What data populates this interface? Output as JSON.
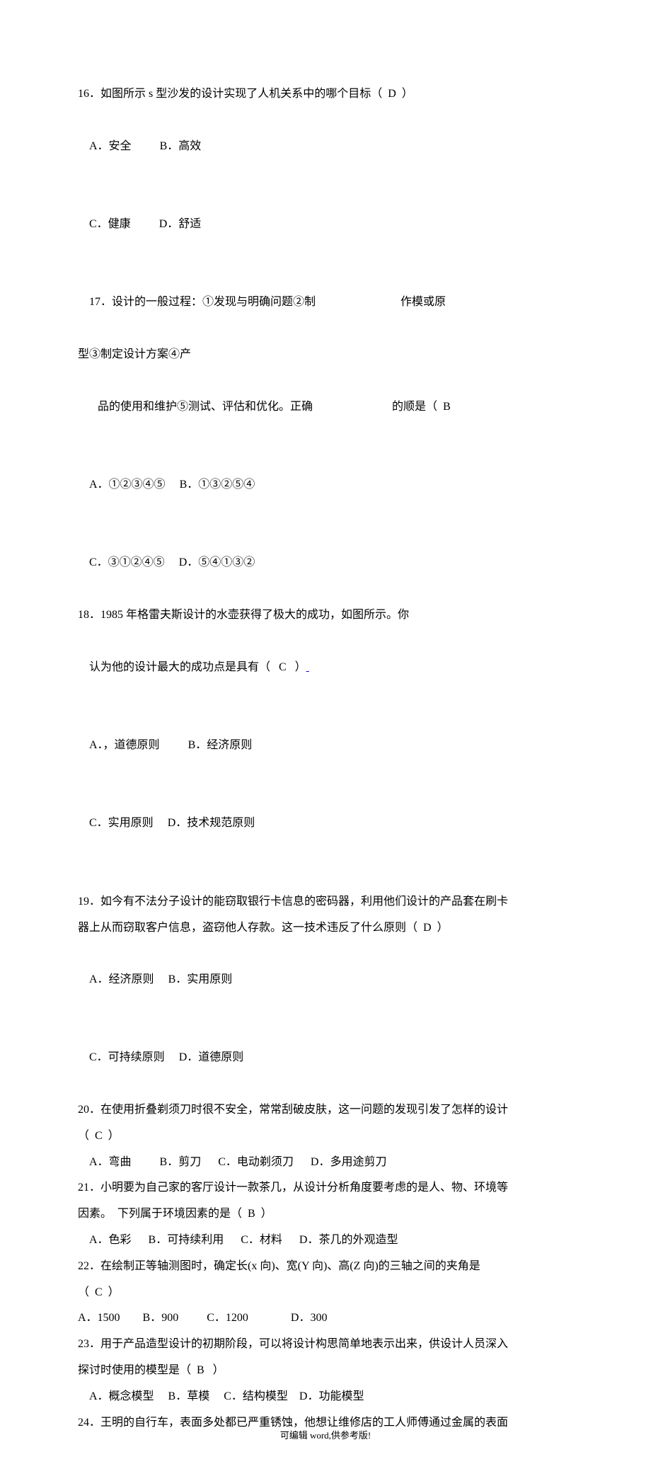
{
  "q16": {
    "text": "16．如图所示 s 型沙发的设计实现了人机关系中的哪个目标（  D  ）",
    "optA": "A．安全",
    "optB": "B．高效",
    "optC": "C．健康",
    "optD": "D．舒适"
  },
  "q17": {
    "text1_left": "17．设计的一般过程：①发现与明确问题②制",
    "text1_right": "作模或原",
    "text2": "型③制定设计方案④产",
    "text3_left": "   品的使用和维护⑤测试、评估和优化。正确",
    "text3_right": "的顺是（  B",
    "optA": "A．①②③④⑤",
    "optB": "B．①③②⑤④",
    "optC": "C．③①②④⑤",
    "optD": "D．⑤④①③②"
  },
  "q18": {
    "text1": "18．1985 年格雷夫斯设计的水壶获得了极大的成功，如图所示。你",
    "text2_a": "认为他的设计最大的成功点是具有（   C   ）",
    "text2_b": " ",
    "optA": "A．，道德原则",
    "optB": "B．经济原则",
    "optC": "C．实用原则",
    "optD": "D．技术规范原则"
  },
  "q19": {
    "text1": "19．如今有不法分子设计的能窃取银行卡信息的密码器，利用他们设计的产品套在刷卡",
    "text2": "器上从而窃取客户信息，盗窃他人存款。这一技术违反了什么原则（  D  ）",
    "optA": "A．经济原则",
    "optB": "B．实用原则",
    "optC": "C．可持续原则",
    "optD": "D．道德原则"
  },
  "q20": {
    "text1": "20．在使用折叠剃须刀时很不安全，常常刮破皮肤，这一问题的发现引发了怎样的设计",
    "text2": "（  C  ）",
    "opts": "    A．弯曲          B．剪刀      C．电动剃须刀      D．多用途剪刀"
  },
  "q21": {
    "text1": "21．小明要为自己家的客厅设计一款茶几，从设计分析角度要考虑的是人、物、环境等",
    "text2": "因素。  下列属于环境因素的是（  B  ）",
    "opts": "    A．色彩      B．可持续利用      C．材料      D．茶几的外观造型"
  },
  "q22": {
    "text1": "22．在绘制正等轴测图时，确定长(x 向)、宽(Y 向)、高(Z 向)的三轴之间的夹角是",
    "text2": "（  C  ）",
    "opts": "A．1500        B．900          C．1200               D．300"
  },
  "q23": {
    "text1": "23．用于产品造型设计的初期阶段，可以将设计构思简单地表示出来，供设计人员深入",
    "text2": "探讨时使用的模型是（  B   ）",
    "opts": "    A．概念模型     B．草模     C．结构模型    D．功能模型"
  },
  "q24": {
    "text1": "24．王明的自行车，表面多处都已严重锈蚀，他想让维修店的工人师傅通过金属的表面"
  },
  "footer": "可编辑 word,供参考版!",
  "layout": {
    "gap_q17_1": "                              ",
    "gap_q17_3": "                            ",
    "opt_gap": "          ",
    "opt_gap_s": "     "
  }
}
